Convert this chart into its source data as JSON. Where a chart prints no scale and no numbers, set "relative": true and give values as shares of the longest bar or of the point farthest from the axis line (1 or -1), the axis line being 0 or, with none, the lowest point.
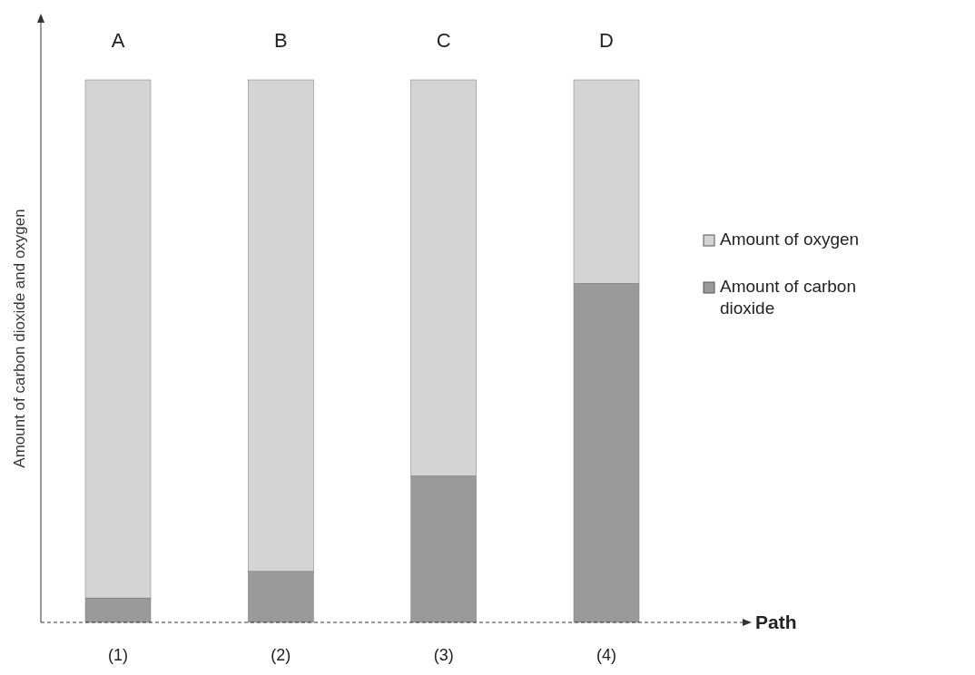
{
  "chart_data": {
    "type": "bar",
    "stacked": true,
    "relative": true,
    "ylabel": "Amount of carbon dioxide and oxygen",
    "xlabel": "Path",
    "categories": [
      "(1)",
      "(2)",
      "(3)",
      "(4)"
    ],
    "series": [
      {
        "name": "Amount of carbon dioxide",
        "color": "#9a9a9a",
        "values": [
          0.045,
          0.094,
          0.27,
          0.625
        ]
      },
      {
        "name": "Amount of oxygen",
        "color": "#d4d4d4",
        "values": [
          0.955,
          0.906,
          0.73,
          0.375
        ]
      }
    ],
    "annotations": [
      "A",
      "B",
      "C",
      "D"
    ],
    "legend": "right"
  }
}
